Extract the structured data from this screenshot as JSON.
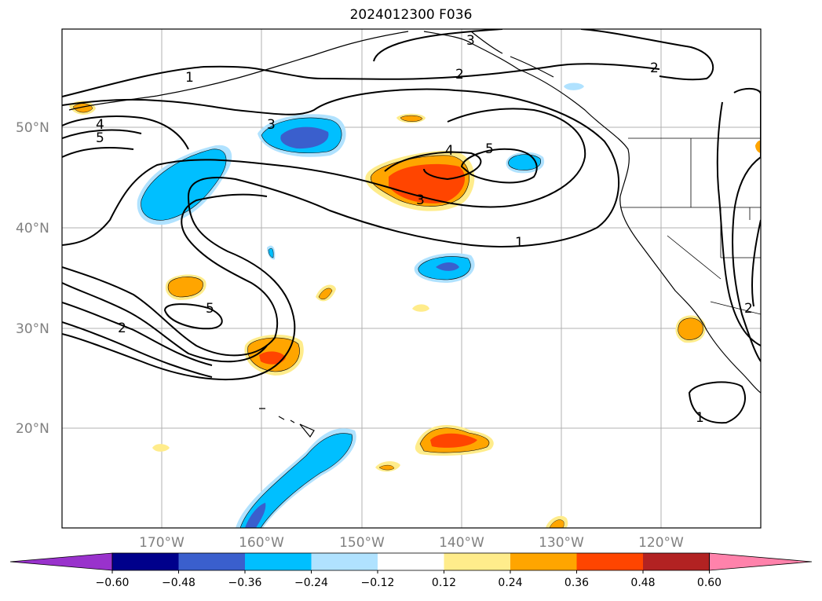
{
  "title": "2024012300 F036",
  "map": {
    "lat_labels": [
      "50°N",
      "40°N",
      "30°N",
      "20°N"
    ],
    "lon_labels": [
      "170°W",
      "160°W",
      "150°W",
      "140°W",
      "130°W",
      "120°W"
    ],
    "contour_labels": [
      "1",
      "2",
      "2",
      "4",
      "5",
      "3",
      "4",
      "5",
      "3",
      "1",
      "2",
      "5",
      "3",
      "2",
      "1"
    ]
  },
  "colorbar": {
    "colors": [
      "#9932cc",
      "#00008b",
      "#3a5fcd",
      "#00bfff",
      "#b0e2ff",
      "#ffffff",
      "#ffec8b",
      "#ffa500",
      "#ff4500",
      "#b22222",
      "#ff82ab"
    ],
    "tick_labels": [
      "−0.60",
      "−0.48",
      "−0.36",
      "−0.24",
      "−0.12",
      "0.12",
      "0.24",
      "0.36",
      "0.48",
      "0.60"
    ]
  }
}
